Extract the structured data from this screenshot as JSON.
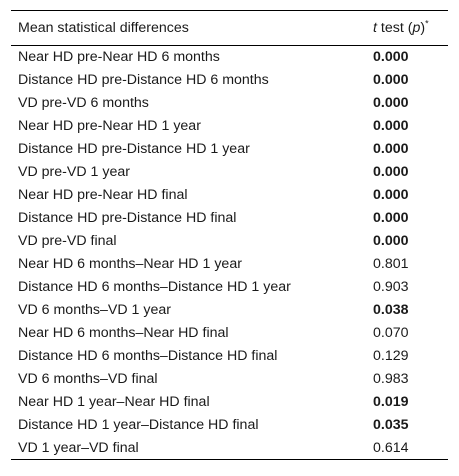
{
  "table": {
    "header": {
      "label": "Mean statistical differences",
      "t_italic": "t",
      "test_text": " test (",
      "p_italic": "p",
      "close_paren": ")",
      "asterisk": "*"
    },
    "rows": [
      {
        "label": "Near HD pre-Near HD 6 months",
        "value": "0.000",
        "significant": true
      },
      {
        "label": "Distance HD pre-Distance HD 6 months",
        "value": "0.000",
        "significant": true
      },
      {
        "label": "VD pre-VD 6 months",
        "value": "0.000",
        "significant": true
      },
      {
        "label": "Near HD pre-Near HD 1 year",
        "value": "0.000",
        "significant": true
      },
      {
        "label": "Distance HD pre-Distance HD 1 year",
        "value": "0.000",
        "significant": true
      },
      {
        "label": "VD pre-VD 1 year",
        "value": "0.000",
        "significant": true
      },
      {
        "label": "Near HD pre-Near HD final",
        "value": "0.000",
        "significant": true
      },
      {
        "label": "Distance HD pre-Distance HD final",
        "value": "0.000",
        "significant": true
      },
      {
        "label": "VD pre-VD final",
        "value": "0.000",
        "significant": true
      },
      {
        "label": "Near HD 6 months–Near HD 1 year",
        "value": "0.801",
        "significant": false
      },
      {
        "label": "Distance HD 6 months–Distance HD 1 year",
        "value": "0.903",
        "significant": false
      },
      {
        "label": "VD 6 months–VD 1 year",
        "value": "0.038",
        "significant": true
      },
      {
        "label": "Near HD 6 months–Near HD final",
        "value": "0.070",
        "significant": false
      },
      {
        "label": "Distance HD 6 months–Distance HD final",
        "value": "0.129",
        "significant": false
      },
      {
        "label": "VD 6 months–VD final",
        "value": "0.983",
        "significant": false
      },
      {
        "label": "Near HD 1 year–Near HD final",
        "value": "0.019",
        "significant": true
      },
      {
        "label": "Distance HD 1 year–Distance HD final",
        "value": "0.035",
        "significant": true
      },
      {
        "label": "VD 1 year–VD final",
        "value": "0.614",
        "significant": false
      }
    ]
  }
}
